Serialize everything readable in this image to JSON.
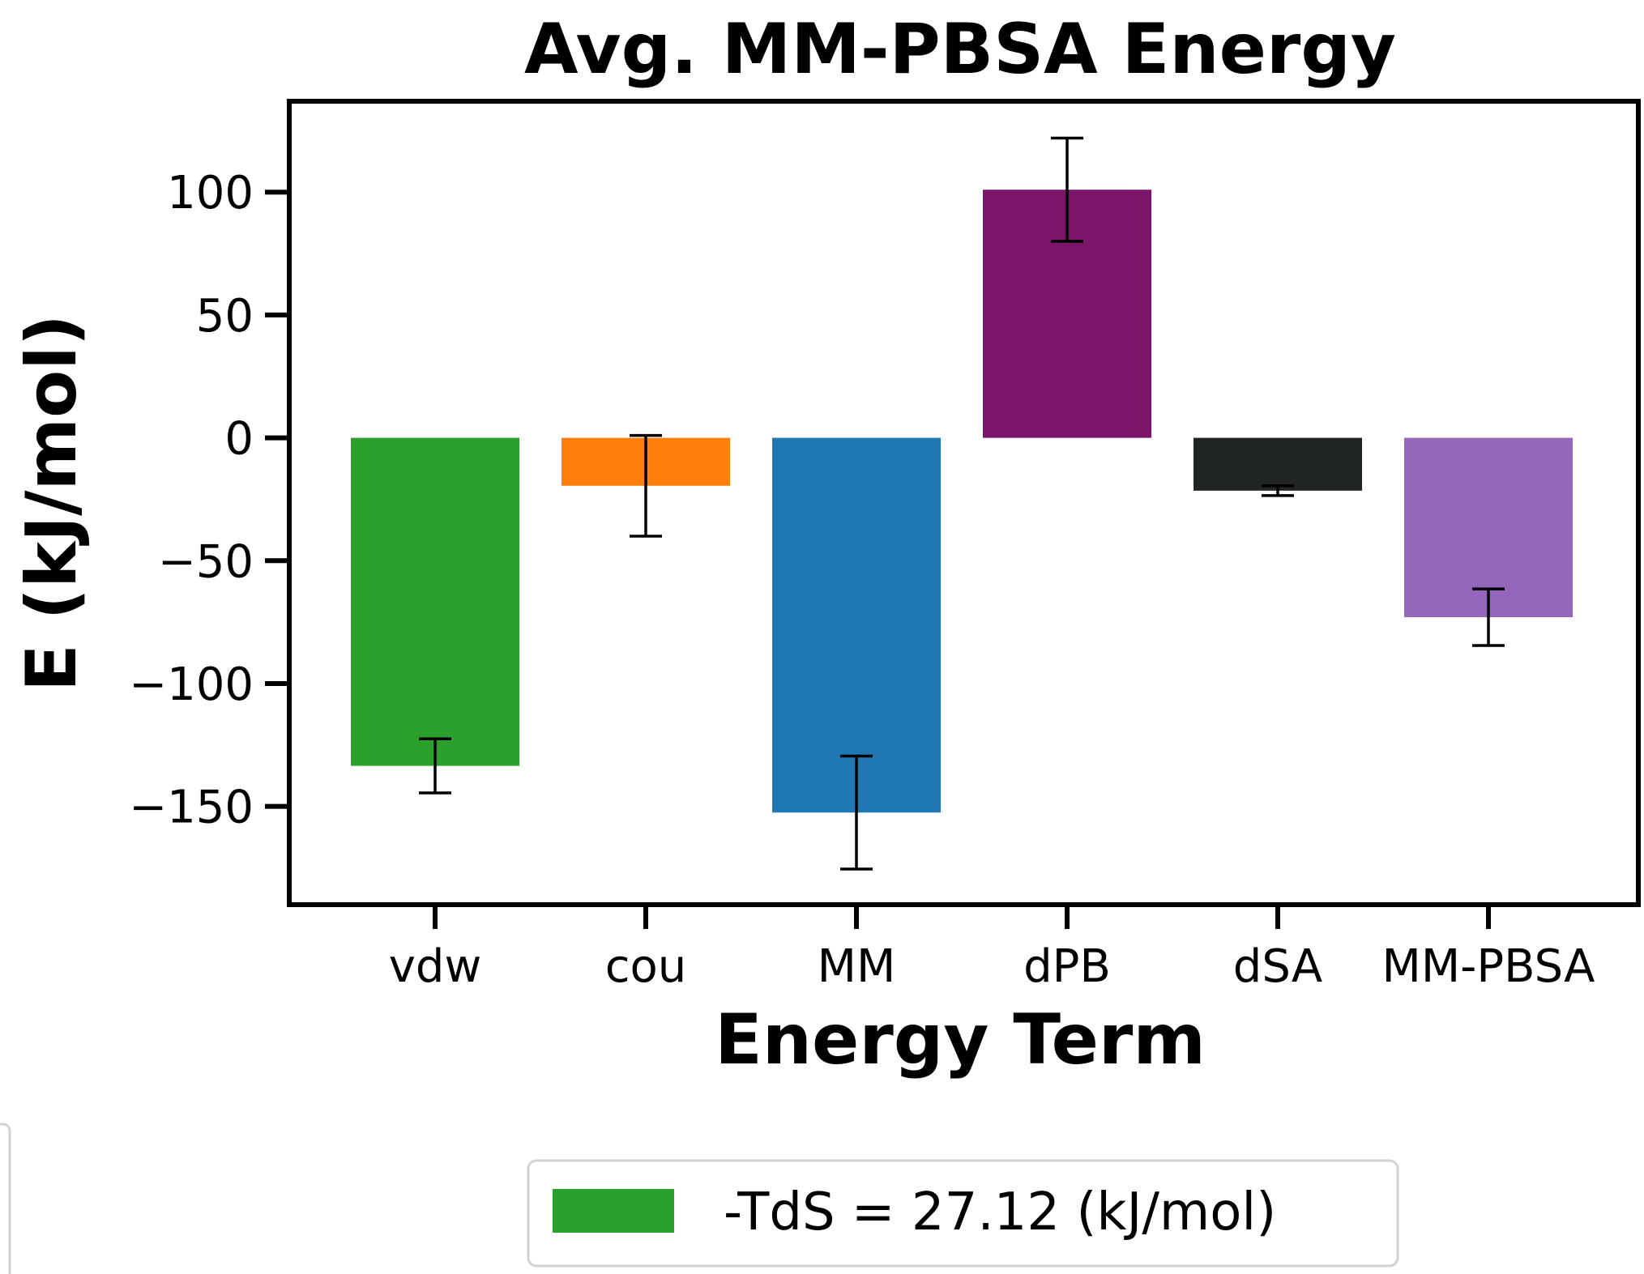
{
  "chart_data": {
    "type": "bar",
    "title": "Avg. MM-PBSA Energy",
    "xlabel": "Energy Term",
    "ylabel": "E (kJ/mol)",
    "categories": [
      "vdw",
      "cou",
      "MM",
      "dPB",
      "dSA",
      "MM-PBSA"
    ],
    "values": [
      -133.5,
      -19.5,
      -152.5,
      101.0,
      -21.5,
      -73.0
    ],
    "errors": [
      11.0,
      20.5,
      23.0,
      21.0,
      2.0,
      11.5
    ],
    "colors": [
      "#2ca02c",
      "#ff7f0e",
      "#1f77b4",
      "#7b1569",
      "#202423",
      "#9467bd"
    ],
    "ylim": [
      -190,
      137
    ],
    "yticks": [
      100,
      50,
      0,
      -50,
      -100,
      -150
    ],
    "ytick_labels": [
      "100",
      "50",
      "0",
      "−50",
      "−100",
      "−150"
    ],
    "grid": false,
    "legend": {
      "placement": "bottom-center",
      "entries": [
        {
          "label": "-TdS = 27.12 (kJ/mol)",
          "color": "#2ca02c"
        }
      ]
    }
  }
}
